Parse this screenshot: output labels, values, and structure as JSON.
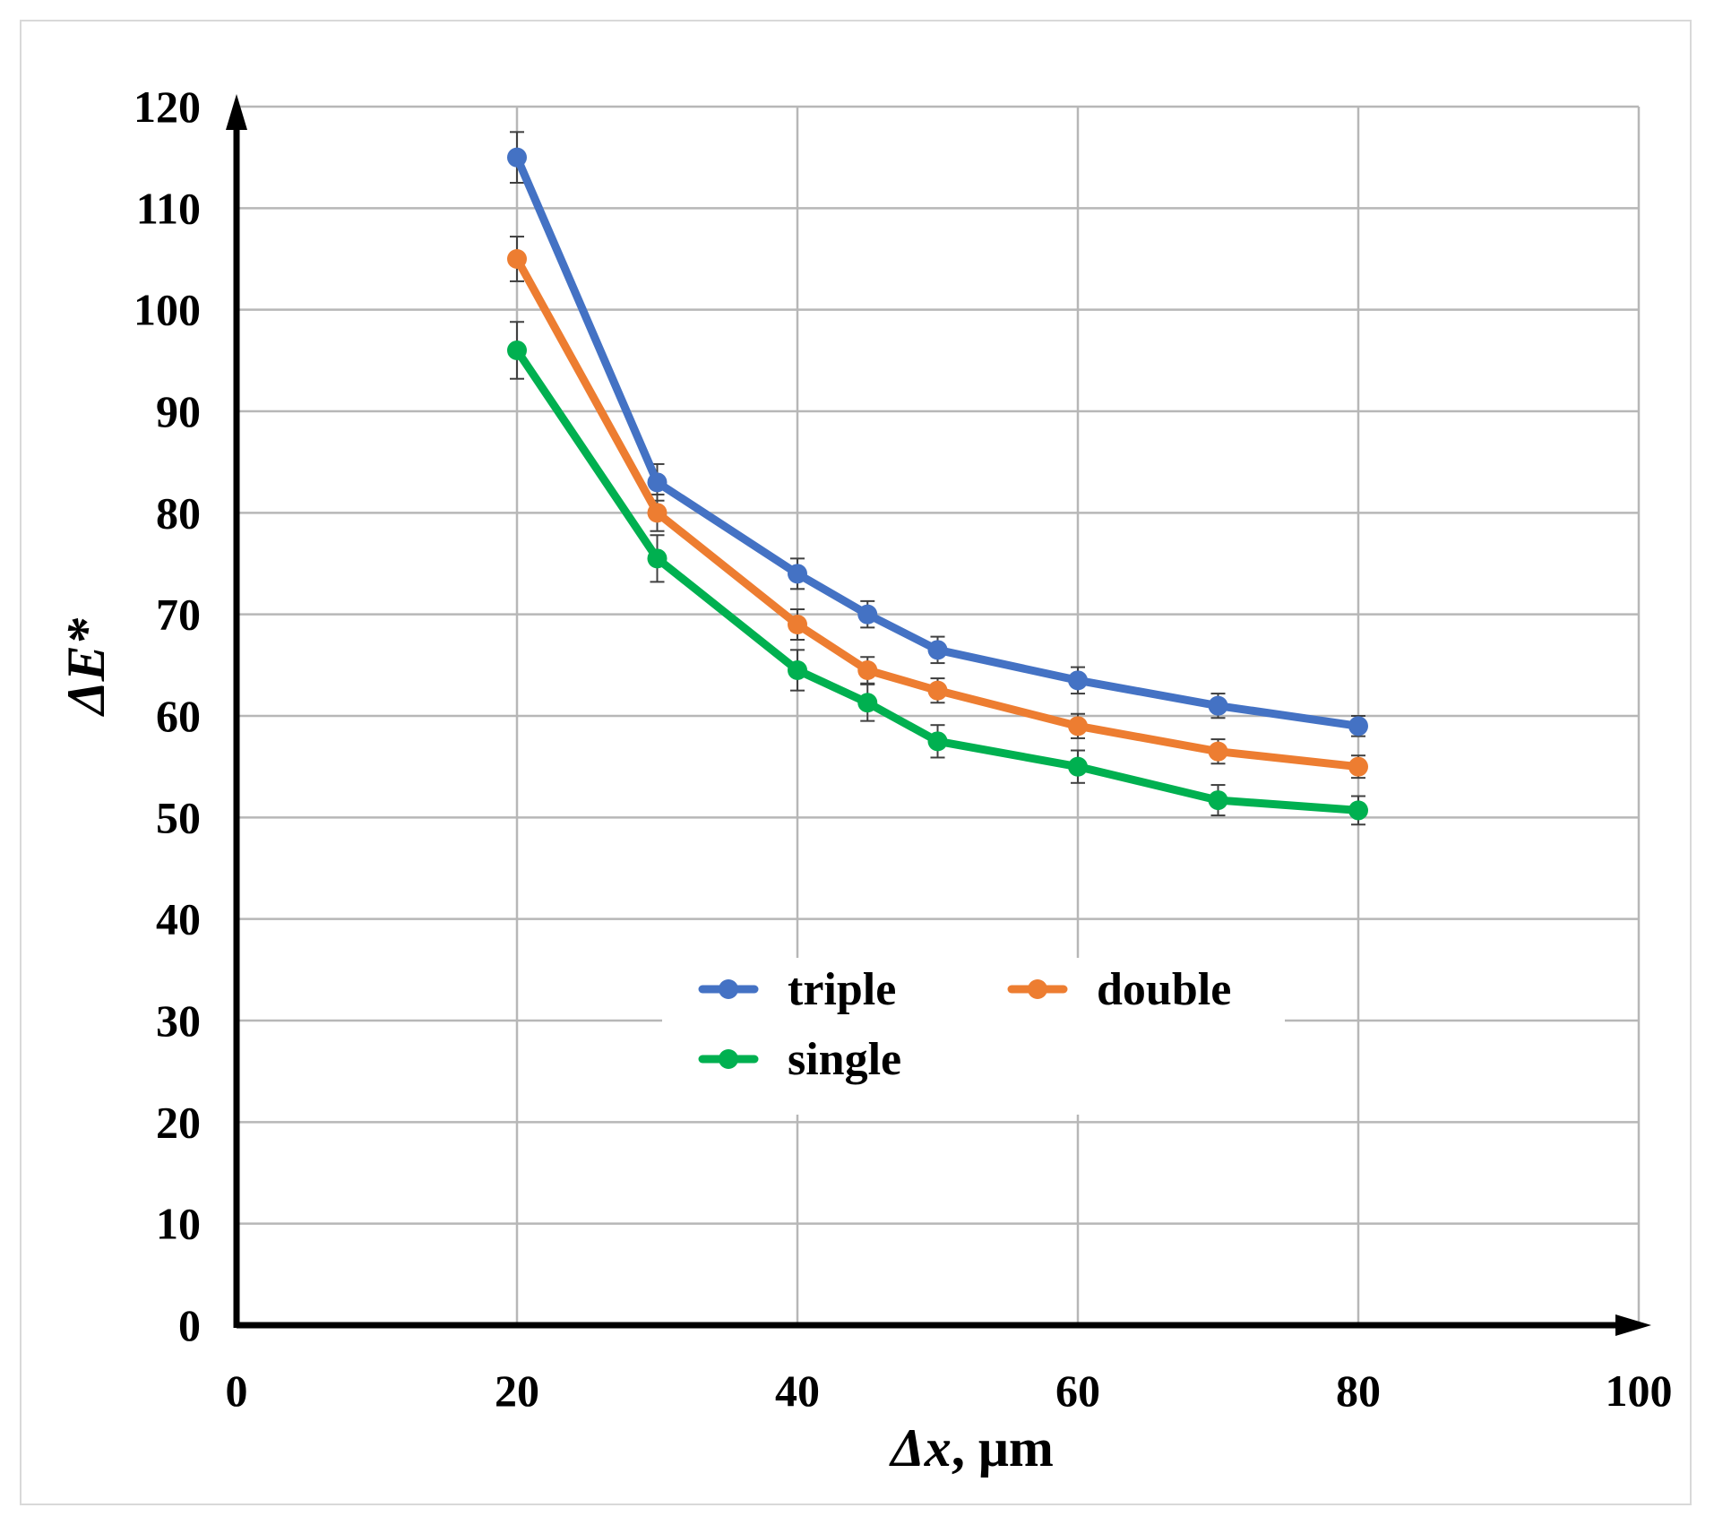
{
  "chart_data": {
    "type": "line",
    "xlabel_prefix": "Δx",
    "xlabel_suffix": ", μm",
    "ylabel": "ΔE*",
    "xlim": [
      0,
      100
    ],
    "ylim": [
      0,
      120
    ],
    "x_ticks": [
      0,
      20,
      40,
      60,
      80,
      100
    ],
    "y_ticks": [
      0,
      10,
      20,
      30,
      40,
      50,
      60,
      70,
      80,
      90,
      100,
      110,
      120
    ],
    "grid": true,
    "legend_position": "center",
    "x": [
      20,
      30,
      40,
      45,
      50,
      60,
      70,
      80
    ],
    "series": [
      {
        "name": "triple",
        "color": "#4472c4",
        "values": [
          115,
          83,
          74,
          70,
          66.5,
          63.5,
          61,
          59
        ],
        "errors": [
          2.5,
          1.8,
          1.5,
          1.3,
          1.3,
          1.3,
          1.2,
          1.0
        ]
      },
      {
        "name": "double",
        "color": "#ed7d31",
        "values": [
          105,
          80,
          69,
          64.5,
          62.5,
          59,
          56.5,
          55
        ],
        "errors": [
          2.2,
          1.8,
          1.5,
          1.3,
          1.2,
          1.2,
          1.2,
          1.1
        ]
      },
      {
        "name": "single",
        "color": "#00b050",
        "values": [
          96,
          75.5,
          64.5,
          61.3,
          57.5,
          55,
          51.7,
          50.7
        ],
        "errors": [
          2.8,
          2.3,
          2.0,
          1.8,
          1.6,
          1.6,
          1.5,
          1.4
        ]
      }
    ]
  }
}
